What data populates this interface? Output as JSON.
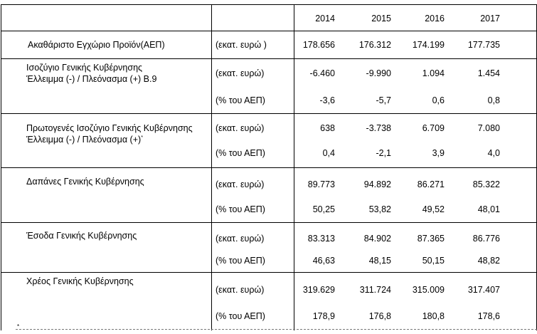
{
  "years": [
    "2014",
    "2015",
    "2016",
    "2017"
  ],
  "rows": [
    {
      "label": "Ακαθάριστο Εγχώριο Προϊόν(ΑΕΠ)",
      "unit": "(εκατ. ευρώ )",
      "values": [
        "178.656",
        "176.312",
        "174.199",
        "177.735"
      ]
    },
    {
      "label_line1": "Ισοζύγιο Γενικής Κυβέρνησης",
      "label_line2": "Έλλειμμα (-) / Πλεόνασμα (+) Β.9",
      "unit": "(εκατ. ευρώ)",
      "values": [
        "-6.460",
        "-9.990",
        "1.094",
        "1.454"
      ],
      "unit2": "(% του ΑΕΠ)",
      "values2": [
        "-3,6",
        "-5,7",
        "0,6",
        "0,8"
      ]
    },
    {
      "label_line1": "Πρωτογενές Ισοζύγιο Γενικής Κυβέρνησης",
      "label_line2": "Έλλειμμα (-) / Πλεόνασμα (+)",
      "label_sup": "*",
      "unit": "(εκατ. ευρώ)",
      "values": [
        "638",
        "-3.738",
        "6.709",
        "7.080"
      ],
      "unit2": "(% του ΑΕΠ)",
      "values2": [
        "0,4",
        "-2,1",
        "3,9",
        "4,0"
      ]
    },
    {
      "label": "Δαπάνες Γενικής Κυβέρνησης",
      "unit": "(εκατ. ευρώ)",
      "values": [
        "89.773",
        "94.892",
        "86.271",
        "85.322"
      ],
      "unit2": "(% του ΑΕΠ)",
      "values2": [
        "50,25",
        "53,82",
        "49,52",
        "48,01"
      ]
    },
    {
      "label": "Έσοδα Γενικής Κυβέρνησης",
      "unit": "(εκατ. ευρώ)",
      "values": [
        "83.313",
        "84.902",
        "87.365",
        "86.776"
      ],
      "unit2": "(% του ΑΕΠ)",
      "values2": [
        "46,63",
        "48,15",
        "50,15",
        "48,82"
      ]
    },
    {
      "label": "Χρέος Γενικής Κυβέρνησης",
      "unit": "(εκατ. ευρώ)",
      "values": [
        "319.629",
        "311.724",
        "315.009",
        "317.407"
      ],
      "unit2": "(% του ΑΕΠ)",
      "values2": [
        "178,9",
        "176,8",
        "180,8",
        "178,6"
      ]
    }
  ],
  "footnote_marker": "*"
}
